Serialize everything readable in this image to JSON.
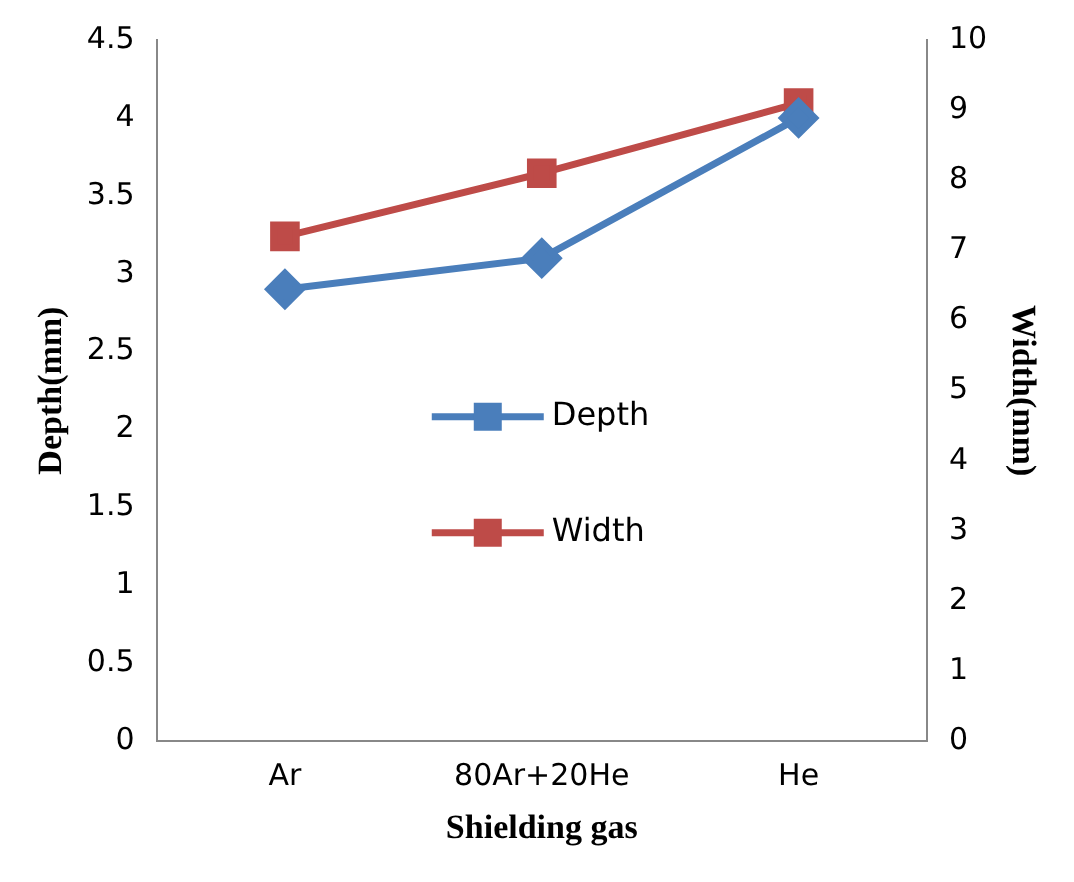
{
  "chart_data": {
    "type": "line",
    "xlabel": "Shielding gas",
    "ylabel": "Depth(mm)",
    "y2label": "Width(mm)",
    "categories": [
      "Ar",
      "80Ar+20He",
      "He"
    ],
    "series": [
      {
        "name": "Depth",
        "color": "#4a7ebb",
        "values": [
          2.9,
          3.1,
          4.0
        ],
        "marker": "diamond"
      },
      {
        "name": "Width",
        "color": "#be4b48",
        "values": [
          7.2,
          8.1,
          9.1
        ],
        "axis": "y2",
        "marker": "square"
      }
    ],
    "ylim": [
      0,
      4.5
    ],
    "yticks": [
      0,
      0.5,
      1,
      1.5,
      2,
      2.5,
      3,
      3.5,
      4,
      4.5
    ],
    "y2lim": [
      0,
      10
    ],
    "y2ticks": [
      0,
      1,
      2,
      3,
      4,
      5,
      6,
      7,
      8,
      9,
      10
    ],
    "grid": false,
    "legend": "center"
  }
}
